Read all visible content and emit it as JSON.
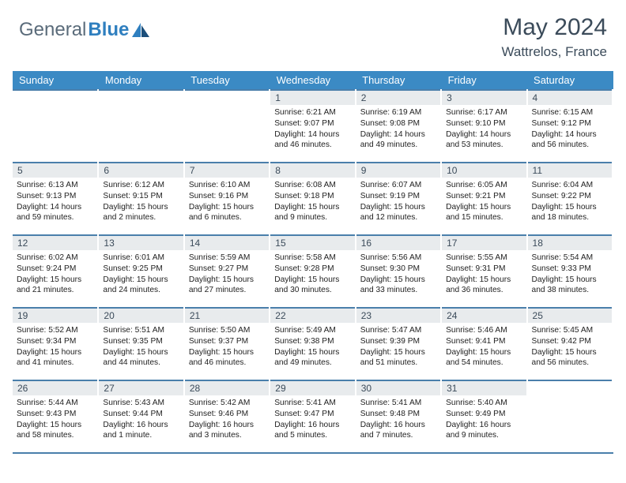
{
  "brand": {
    "part1": "General",
    "part2": "Blue"
  },
  "title": "May 2024",
  "location": "Wattrelos, France",
  "colors": {
    "header_bg": "#3b8ac4",
    "rule": "#4a7fab",
    "daynum_bg": "#e8ebed",
    "text_dark": "#3b4b5a",
    "brand_gray": "#5a6b7a",
    "brand_blue": "#2f7fbf"
  },
  "weekdays": [
    "Sunday",
    "Monday",
    "Tuesday",
    "Wednesday",
    "Thursday",
    "Friday",
    "Saturday"
  ],
  "weeks": [
    [
      {
        "n": "",
        "lines": []
      },
      {
        "n": "",
        "lines": []
      },
      {
        "n": "",
        "lines": []
      },
      {
        "n": "1",
        "lines": [
          "Sunrise: 6:21 AM",
          "Sunset: 9:07 PM",
          "Daylight: 14 hours",
          "and 46 minutes."
        ]
      },
      {
        "n": "2",
        "lines": [
          "Sunrise: 6:19 AM",
          "Sunset: 9:08 PM",
          "Daylight: 14 hours",
          "and 49 minutes."
        ]
      },
      {
        "n": "3",
        "lines": [
          "Sunrise: 6:17 AM",
          "Sunset: 9:10 PM",
          "Daylight: 14 hours",
          "and 53 minutes."
        ]
      },
      {
        "n": "4",
        "lines": [
          "Sunrise: 6:15 AM",
          "Sunset: 9:12 PM",
          "Daylight: 14 hours",
          "and 56 minutes."
        ]
      }
    ],
    [
      {
        "n": "5",
        "lines": [
          "Sunrise: 6:13 AM",
          "Sunset: 9:13 PM",
          "Daylight: 14 hours",
          "and 59 minutes."
        ]
      },
      {
        "n": "6",
        "lines": [
          "Sunrise: 6:12 AM",
          "Sunset: 9:15 PM",
          "Daylight: 15 hours",
          "and 2 minutes."
        ]
      },
      {
        "n": "7",
        "lines": [
          "Sunrise: 6:10 AM",
          "Sunset: 9:16 PM",
          "Daylight: 15 hours",
          "and 6 minutes."
        ]
      },
      {
        "n": "8",
        "lines": [
          "Sunrise: 6:08 AM",
          "Sunset: 9:18 PM",
          "Daylight: 15 hours",
          "and 9 minutes."
        ]
      },
      {
        "n": "9",
        "lines": [
          "Sunrise: 6:07 AM",
          "Sunset: 9:19 PM",
          "Daylight: 15 hours",
          "and 12 minutes."
        ]
      },
      {
        "n": "10",
        "lines": [
          "Sunrise: 6:05 AM",
          "Sunset: 9:21 PM",
          "Daylight: 15 hours",
          "and 15 minutes."
        ]
      },
      {
        "n": "11",
        "lines": [
          "Sunrise: 6:04 AM",
          "Sunset: 9:22 PM",
          "Daylight: 15 hours",
          "and 18 minutes."
        ]
      }
    ],
    [
      {
        "n": "12",
        "lines": [
          "Sunrise: 6:02 AM",
          "Sunset: 9:24 PM",
          "Daylight: 15 hours",
          "and 21 minutes."
        ]
      },
      {
        "n": "13",
        "lines": [
          "Sunrise: 6:01 AM",
          "Sunset: 9:25 PM",
          "Daylight: 15 hours",
          "and 24 minutes."
        ]
      },
      {
        "n": "14",
        "lines": [
          "Sunrise: 5:59 AM",
          "Sunset: 9:27 PM",
          "Daylight: 15 hours",
          "and 27 minutes."
        ]
      },
      {
        "n": "15",
        "lines": [
          "Sunrise: 5:58 AM",
          "Sunset: 9:28 PM",
          "Daylight: 15 hours",
          "and 30 minutes."
        ]
      },
      {
        "n": "16",
        "lines": [
          "Sunrise: 5:56 AM",
          "Sunset: 9:30 PM",
          "Daylight: 15 hours",
          "and 33 minutes."
        ]
      },
      {
        "n": "17",
        "lines": [
          "Sunrise: 5:55 AM",
          "Sunset: 9:31 PM",
          "Daylight: 15 hours",
          "and 36 minutes."
        ]
      },
      {
        "n": "18",
        "lines": [
          "Sunrise: 5:54 AM",
          "Sunset: 9:33 PM",
          "Daylight: 15 hours",
          "and 38 minutes."
        ]
      }
    ],
    [
      {
        "n": "19",
        "lines": [
          "Sunrise: 5:52 AM",
          "Sunset: 9:34 PM",
          "Daylight: 15 hours",
          "and 41 minutes."
        ]
      },
      {
        "n": "20",
        "lines": [
          "Sunrise: 5:51 AM",
          "Sunset: 9:35 PM",
          "Daylight: 15 hours",
          "and 44 minutes."
        ]
      },
      {
        "n": "21",
        "lines": [
          "Sunrise: 5:50 AM",
          "Sunset: 9:37 PM",
          "Daylight: 15 hours",
          "and 46 minutes."
        ]
      },
      {
        "n": "22",
        "lines": [
          "Sunrise: 5:49 AM",
          "Sunset: 9:38 PM",
          "Daylight: 15 hours",
          "and 49 minutes."
        ]
      },
      {
        "n": "23",
        "lines": [
          "Sunrise: 5:47 AM",
          "Sunset: 9:39 PM",
          "Daylight: 15 hours",
          "and 51 minutes."
        ]
      },
      {
        "n": "24",
        "lines": [
          "Sunrise: 5:46 AM",
          "Sunset: 9:41 PM",
          "Daylight: 15 hours",
          "and 54 minutes."
        ]
      },
      {
        "n": "25",
        "lines": [
          "Sunrise: 5:45 AM",
          "Sunset: 9:42 PM",
          "Daylight: 15 hours",
          "and 56 minutes."
        ]
      }
    ],
    [
      {
        "n": "26",
        "lines": [
          "Sunrise: 5:44 AM",
          "Sunset: 9:43 PM",
          "Daylight: 15 hours",
          "and 58 minutes."
        ]
      },
      {
        "n": "27",
        "lines": [
          "Sunrise: 5:43 AM",
          "Sunset: 9:44 PM",
          "Daylight: 16 hours",
          "and 1 minute."
        ]
      },
      {
        "n": "28",
        "lines": [
          "Sunrise: 5:42 AM",
          "Sunset: 9:46 PM",
          "Daylight: 16 hours",
          "and 3 minutes."
        ]
      },
      {
        "n": "29",
        "lines": [
          "Sunrise: 5:41 AM",
          "Sunset: 9:47 PM",
          "Daylight: 16 hours",
          "and 5 minutes."
        ]
      },
      {
        "n": "30",
        "lines": [
          "Sunrise: 5:41 AM",
          "Sunset: 9:48 PM",
          "Daylight: 16 hours",
          "and 7 minutes."
        ]
      },
      {
        "n": "31",
        "lines": [
          "Sunrise: 5:40 AM",
          "Sunset: 9:49 PM",
          "Daylight: 16 hours",
          "and 9 minutes."
        ]
      },
      {
        "n": "",
        "lines": []
      }
    ]
  ]
}
